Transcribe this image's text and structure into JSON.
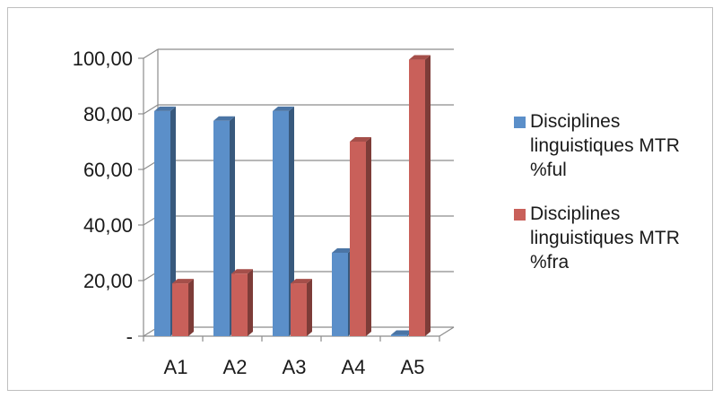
{
  "chart_data": {
    "type": "bar",
    "3d": true,
    "categories": [
      "A1",
      "A2",
      "A3",
      "A4",
      "A5"
    ],
    "series": [
      {
        "name": "Disciplines\nlinguistiques MTR\n%ful",
        "values": [
          81.0,
          77.5,
          81.0,
          30.0,
          0.5
        ],
        "color": "#5b8fc9"
      },
      {
        "name": "Disciplines\nlinguistiques MTR\n%fra",
        "values": [
          19.0,
          22.5,
          19.0,
          70.0,
          99.5
        ],
        "color": "#c9605a"
      }
    ],
    "ylim": [
      0,
      100
    ],
    "yticks": [
      0,
      20,
      40,
      60,
      80,
      100
    ],
    "ytick_labels": [
      "-",
      "20,00",
      "40,00",
      "60,00",
      "80,00",
      "100,00"
    ],
    "grid": true,
    "legend_position": "right"
  }
}
